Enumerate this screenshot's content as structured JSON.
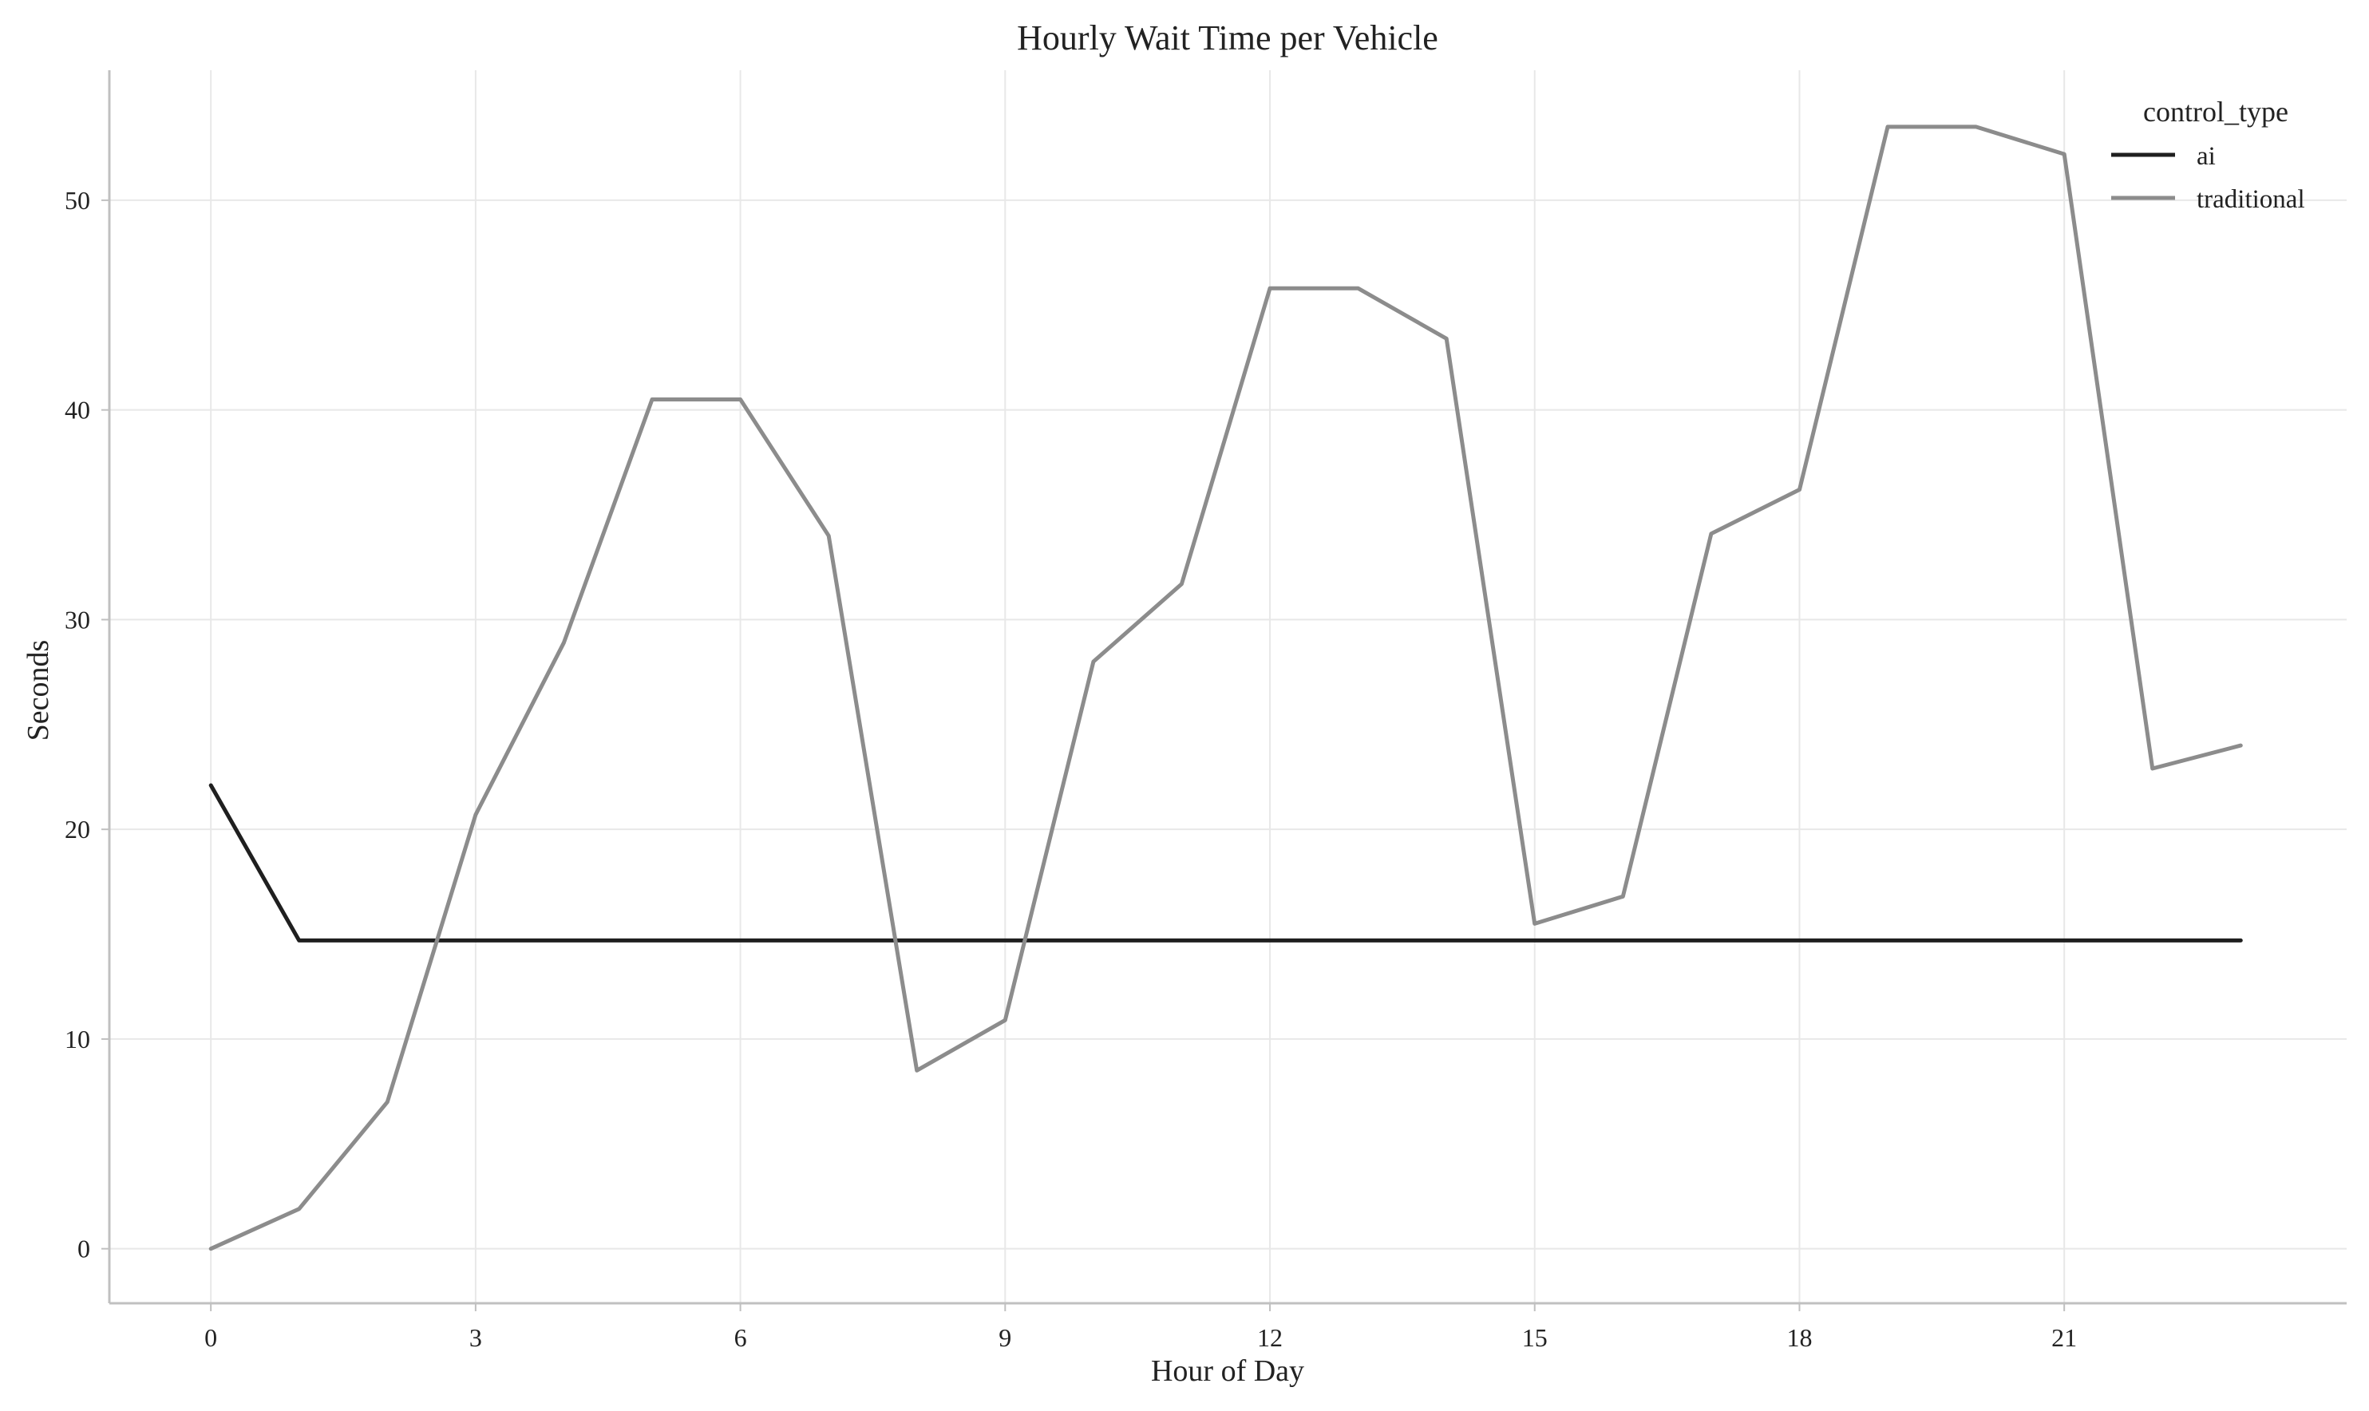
{
  "chart_data": {
    "type": "line",
    "title": "Hourly Wait Time per Vehicle",
    "xlabel": "Hour of Day",
    "ylabel": "Seconds",
    "xlim": [
      -1.15,
      24.2
    ],
    "ylim": [
      -2.6,
      56.2
    ],
    "xticks": [
      0,
      3,
      6,
      9,
      12,
      15,
      18,
      21
    ],
    "yticks": [
      0,
      10,
      20,
      30,
      40,
      50
    ],
    "grid": true,
    "legend": {
      "title": "control_type",
      "position": "top-right"
    },
    "x": [
      0,
      1,
      2,
      3,
      4,
      5,
      6,
      7,
      8,
      9,
      10,
      11,
      12,
      13,
      14,
      15,
      16,
      17,
      18,
      19,
      20,
      21,
      22,
      23
    ],
    "series": [
      {
        "name": "ai",
        "color": "#1f1f1f",
        "values": [
          22.1,
          14.7,
          14.7,
          14.7,
          14.7,
          14.7,
          14.7,
          14.7,
          14.7,
          14.7,
          14.7,
          14.7,
          14.7,
          14.7,
          14.7,
          14.7,
          14.7,
          14.7,
          14.7,
          14.7,
          14.7,
          14.7,
          14.7,
          14.7
        ]
      },
      {
        "name": "traditional",
        "color": "#8c8c8c",
        "values": [
          0.0,
          1.9,
          7.0,
          20.7,
          28.9,
          40.5,
          40.5,
          34.0,
          8.5,
          10.9,
          28.0,
          31.7,
          45.8,
          45.8,
          43.4,
          15.5,
          16.8,
          34.1,
          36.2,
          53.5,
          53.5,
          52.2,
          22.9,
          24.0
        ]
      }
    ]
  }
}
